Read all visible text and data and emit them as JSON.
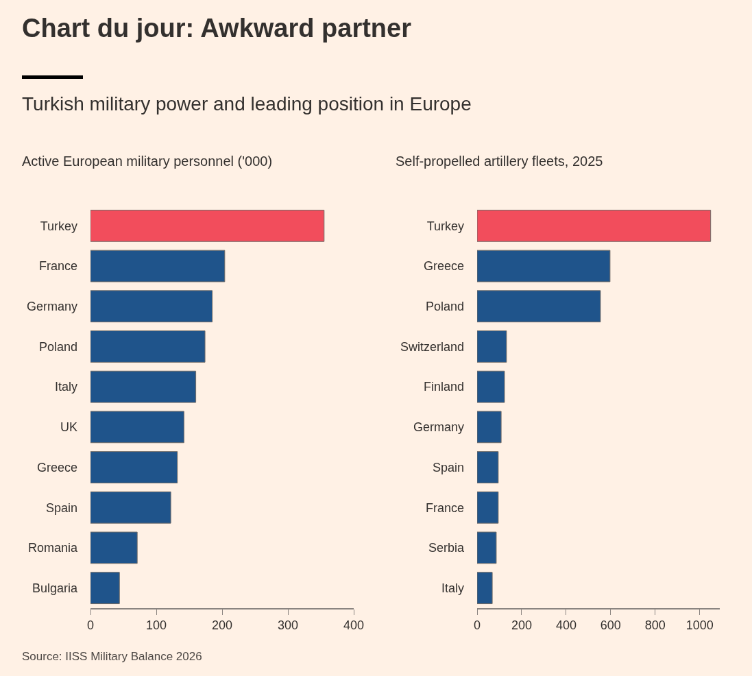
{
  "chart_data": [
    {
      "type": "other",
      "title": "Chart du jour: Awkward partner",
      "subtitle": "Turkish military power and leading position in Europe",
      "annotations": [
        "Source: IISS Military Balance 2026"
      ]
    },
    {
      "type": "bar",
      "orientation": "horizontal",
      "title": "Active European military personnel ('000)",
      "categories": [
        "Turkey",
        "France",
        "Germany",
        "Poland",
        "Italy",
        "UK",
        "Greece",
        "Spain",
        "Romania",
        "Bulgaria"
      ],
      "values": [
        355,
        204,
        185,
        174,
        160,
        142,
        132,
        122,
        71,
        44
      ],
      "colors": [
        "#f24d5c",
        "#1f548b",
        "#1f548b",
        "#1f548b",
        "#1f548b",
        "#1f548b",
        "#1f548b",
        "#1f548b",
        "#1f548b",
        "#1f548b"
      ],
      "xlim": [
        0,
        400
      ],
      "xticks": [
        0,
        100,
        200,
        300,
        400
      ],
      "grid": false
    },
    {
      "type": "bar",
      "orientation": "horizontal",
      "title": "Self-propelled artillery fleets, 2025",
      "categories": [
        "Turkey",
        "Greece",
        "Poland",
        "Switzerland",
        "Finland",
        "Germany",
        "Spain",
        "France",
        "Serbia",
        "Italy"
      ],
      "values": [
        1049,
        597,
        554,
        132,
        123,
        108,
        95,
        95,
        86,
        68
      ],
      "colors": [
        "#f24d5c",
        "#1f548b",
        "#1f548b",
        "#1f548b",
        "#1f548b",
        "#1f548b",
        "#1f548b",
        "#1f548b",
        "#1f548b",
        "#1f548b"
      ],
      "xlim": [
        0,
        1090
      ],
      "xticks": [
        0,
        200,
        400,
        600,
        800,
        1000
      ],
      "grid": false
    }
  ]
}
